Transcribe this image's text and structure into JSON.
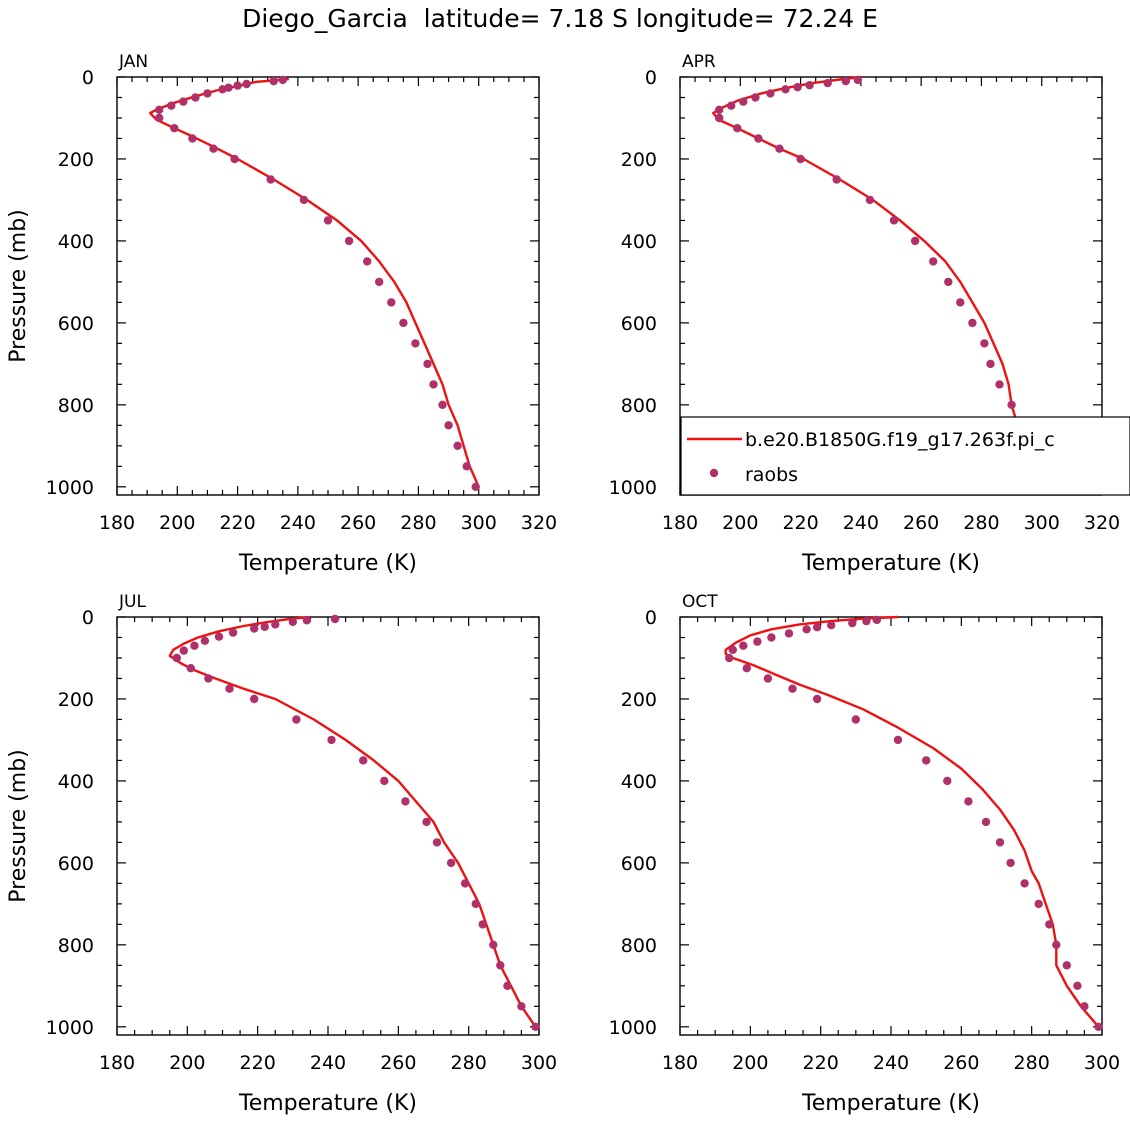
{
  "figure": {
    "title": "Diego_Garcia  latitude= 7.18 S longitude= 72.24 E",
    "legend": {
      "placement": "inside APR panel, lower",
      "line_label": "b.e20.B1850G.f19_g17.263f.pi_c",
      "marker_label": "raobs",
      "line_color": "#ee1111",
      "marker_color": "#b0306a"
    }
  },
  "chart_data": [
    {
      "type": "line",
      "panel_label": "JAN",
      "xlabel": "Temperature (K)",
      "ylabel": "Pressure (mb)",
      "xlim": [
        180,
        320
      ],
      "ylim": [
        1020,
        0
      ],
      "xticks": [
        "180",
        "200",
        "220",
        "240",
        "260",
        "280",
        "300",
        "320"
      ],
      "yticks": [
        "0",
        "200",
        "400",
        "600",
        "800",
        "1000"
      ],
      "series": [
        {
          "kind": "line",
          "points": [
            [
              237,
              5
            ],
            [
              226,
              12
            ],
            [
              220,
              22
            ],
            [
              213,
              33
            ],
            [
              206,
              47
            ],
            [
              199,
              63
            ],
            [
              193,
              80
            ],
            [
              191,
              88
            ],
            [
              193,
              104
            ],
            [
              199,
              125
            ],
            [
              205,
              145
            ],
            [
              212,
              170
            ],
            [
              220,
              200
            ],
            [
              232,
              250
            ],
            [
              243,
              300
            ],
            [
              253,
              350
            ],
            [
              261,
              400
            ],
            [
              267,
              450
            ],
            [
              272,
              500
            ],
            [
              276,
              550
            ],
            [
              279,
              600
            ],
            [
              282,
              650
            ],
            [
              285,
              700
            ],
            [
              288,
              750
            ],
            [
              290,
              800
            ],
            [
              293,
              850
            ],
            [
              295,
              900
            ],
            [
              297,
              950
            ],
            [
              300,
              1000
            ]
          ]
        },
        {
          "kind": "scatter",
          "points": [
            [
              235,
              7
            ],
            [
              232,
              10
            ],
            [
              223,
              17
            ],
            [
              220,
              21
            ],
            [
              217,
              26
            ],
            [
              215,
              30
            ],
            [
              210,
              40
            ],
            [
              206,
              50
            ],
            [
              202,
              60
            ],
            [
              198,
              70
            ],
            [
              194,
              80
            ],
            [
              194,
              100
            ],
            [
              199,
              125
            ],
            [
              205,
              150
            ],
            [
              212,
              175
            ],
            [
              219,
              200
            ],
            [
              231,
              250
            ],
            [
              242,
              300
            ],
            [
              250,
              350
            ],
            [
              257,
              400
            ],
            [
              263,
              450
            ],
            [
              267,
              500
            ],
            [
              271,
              550
            ],
            [
              275,
              600
            ],
            [
              279,
              650
            ],
            [
              283,
              700
            ],
            [
              285,
              750
            ],
            [
              288,
              800
            ],
            [
              290,
              850
            ],
            [
              293,
              900
            ],
            [
              296,
              950
            ],
            [
              299,
              1000
            ]
          ]
        }
      ]
    },
    {
      "type": "line",
      "panel_label": "APR",
      "xlabel": "Temperature (K)",
      "ylabel": "",
      "xlim": [
        180,
        320
      ],
      "ylim": [
        1020,
        0
      ],
      "xticks": [
        "180",
        "200",
        "220",
        "240",
        "260",
        "280",
        "300",
        "320"
      ],
      "yticks": [
        "0",
        "200",
        "400",
        "600",
        "800",
        "1000"
      ],
      "series": [
        {
          "kind": "line",
          "points": [
            [
              240,
              0
            ],
            [
              233,
              6
            ],
            [
              224,
              15
            ],
            [
              215,
              27
            ],
            [
              207,
              40
            ],
            [
              199,
              58
            ],
            [
              193,
              78
            ],
            [
              191,
              88
            ],
            [
              193,
              105
            ],
            [
              199,
              125
            ],
            [
              206,
              150
            ],
            [
              213,
              175
            ],
            [
              221,
              200
            ],
            [
              233,
              250
            ],
            [
              244,
              300
            ],
            [
              253,
              350
            ],
            [
              261,
              400
            ],
            [
              268,
              450
            ],
            [
              273,
              500
            ],
            [
              277,
              550
            ],
            [
              281,
              600
            ],
            [
              284,
              650
            ],
            [
              287,
              700
            ],
            [
              289,
              750
            ],
            [
              290,
              800
            ],
            [
              292,
              850
            ],
            [
              294,
              900
            ],
            [
              297,
              950
            ],
            [
              301,
              1000
            ]
          ]
        },
        {
          "kind": "scatter",
          "points": [
            [
              239,
              7
            ],
            [
              235,
              10
            ],
            [
              229,
              15
            ],
            [
              223,
              20
            ],
            [
              219,
              25
            ],
            [
              215,
              30
            ],
            [
              210,
              40
            ],
            [
              205,
              50
            ],
            [
              201,
              60
            ],
            [
              197,
              70
            ],
            [
              193,
              80
            ],
            [
              193,
              100
            ],
            [
              199,
              125
            ],
            [
              206,
              150
            ],
            [
              213,
              175
            ],
            [
              220,
              200
            ],
            [
              232,
              250
            ],
            [
              243,
              300
            ],
            [
              251,
              350
            ],
            [
              258,
              400
            ],
            [
              264,
              450
            ],
            [
              269,
              500
            ],
            [
              273,
              550
            ],
            [
              277,
              600
            ],
            [
              281,
              650
            ],
            [
              283,
              700
            ],
            [
              286,
              750
            ],
            [
              290,
              800
            ],
            [
              291,
              850
            ],
            [
              293,
              900
            ],
            [
              297,
              950
            ],
            [
              301,
              1000
            ]
          ]
        }
      ]
    },
    {
      "type": "line",
      "panel_label": "JUL",
      "xlabel": "Temperature (K)",
      "ylabel": "Pressure (mb)",
      "xlim": [
        180,
        300
      ],
      "ylim": [
        1020,
        0
      ],
      "xticks": [
        "180",
        "200",
        "220",
        "240",
        "260",
        "280",
        "300"
      ],
      "yticks": [
        "0",
        "200",
        "400",
        "600",
        "800",
        "1000"
      ],
      "series": [
        {
          "kind": "line",
          "points": [
            [
              235,
              0
            ],
            [
              230,
              4
            ],
            [
              223,
              12
            ],
            [
              216,
              22
            ],
            [
              209,
              35
            ],
            [
              203,
              50
            ],
            [
              199,
              65
            ],
            [
              196,
              80
            ],
            [
              195,
              95
            ],
            [
              198,
              112
            ],
            [
              202,
              130
            ],
            [
              208,
              150
            ],
            [
              216,
              175
            ],
            [
              225,
              200
            ],
            [
              236,
              250
            ],
            [
              245,
              300
            ],
            [
              253,
              350
            ],
            [
              260,
              400
            ],
            [
              265,
              450
            ],
            [
              270,
              500
            ],
            [
              273,
              550
            ],
            [
              277,
              600
            ],
            [
              280,
              650
            ],
            [
              283,
              700
            ],
            [
              285,
              750
            ],
            [
              287,
              800
            ],
            [
              289,
              850
            ],
            [
              292,
              900
            ],
            [
              295,
              950
            ],
            [
              299,
              1000
            ]
          ]
        },
        {
          "kind": "scatter",
          "points": [
            [
              242,
              5
            ],
            [
              234,
              8
            ],
            [
              230,
              12
            ],
            [
              225,
              18
            ],
            [
              222,
              24
            ],
            [
              219,
              28
            ],
            [
              213,
              38
            ],
            [
              209,
              48
            ],
            [
              205,
              58
            ],
            [
              202,
              70
            ],
            [
              199,
              82
            ],
            [
              197,
              100
            ],
            [
              201,
              125
            ],
            [
              206,
              150
            ],
            [
              212,
              175
            ],
            [
              219,
              200
            ],
            [
              231,
              250
            ],
            [
              241,
              300
            ],
            [
              250,
              350
            ],
            [
              256,
              400
            ],
            [
              262,
              450
            ],
            [
              268,
              500
            ],
            [
              271,
              550
            ],
            [
              275,
              600
            ],
            [
              279,
              650
            ],
            [
              282,
              700
            ],
            [
              284,
              750
            ],
            [
              287,
              800
            ],
            [
              289,
              850
            ],
            [
              291,
              900
            ],
            [
              295,
              950
            ],
            [
              299,
              1000
            ]
          ]
        }
      ]
    },
    {
      "type": "line",
      "panel_label": "OCT",
      "xlabel": "Temperature (K)",
      "ylabel": "",
      "xlim": [
        180,
        300
      ],
      "ylim": [
        1020,
        0
      ],
      "xticks": [
        "180",
        "200",
        "220",
        "240",
        "260",
        "280",
        "300"
      ],
      "yticks": [
        "0",
        "200",
        "400",
        "600",
        "800",
        "1000"
      ],
      "series": [
        {
          "kind": "line",
          "points": [
            [
              242,
              0
            ],
            [
              232,
              4
            ],
            [
              223,
              10
            ],
            [
              214,
              18
            ],
            [
              206,
              30
            ],
            [
              200,
              45
            ],
            [
              196,
              62
            ],
            [
              193,
              80
            ],
            [
              193,
              90
            ],
            [
              195,
              100
            ],
            [
              201,
              118
            ],
            [
              207,
              140
            ],
            [
              214,
              165
            ],
            [
              222,
              190
            ],
            [
              232,
              225
            ],
            [
              242,
              270
            ],
            [
              252,
              320
            ],
            [
              260,
              370
            ],
            [
              266,
              420
            ],
            [
              271,
              470
            ],
            [
              275,
              520
            ],
            [
              278,
              570
            ],
            [
              280,
              620
            ],
            [
              282,
              650
            ],
            [
              284,
              700
            ],
            [
              286,
              750
            ],
            [
              287,
              800
            ],
            [
              287,
              850
            ],
            [
              290,
              900
            ],
            [
              294,
              950
            ],
            [
              299,
              1000
            ]
          ]
        },
        {
          "kind": "scatter",
          "points": [
            [
              236,
              7
            ],
            [
              233,
              10
            ],
            [
              229,
              15
            ],
            [
              223,
              20
            ],
            [
              219,
              25
            ],
            [
              216,
              30
            ],
            [
              211,
              40
            ],
            [
              206,
              50
            ],
            [
              202,
              60
            ],
            [
              198,
              70
            ],
            [
              195,
              80
            ],
            [
              194,
              100
            ],
            [
              199,
              125
            ],
            [
              205,
              150
            ],
            [
              212,
              175
            ],
            [
              219,
              200
            ],
            [
              230,
              250
            ],
            [
              242,
              300
            ],
            [
              250,
              350
            ],
            [
              256,
              400
            ],
            [
              262,
              450
            ],
            [
              267,
              500
            ],
            [
              271,
              550
            ],
            [
              274,
              600
            ],
            [
              278,
              650
            ],
            [
              282,
              700
            ],
            [
              285,
              750
            ],
            [
              287,
              800
            ],
            [
              290,
              850
            ],
            [
              293,
              900
            ],
            [
              295,
              950
            ],
            [
              299,
              1000
            ]
          ]
        }
      ]
    }
  ]
}
